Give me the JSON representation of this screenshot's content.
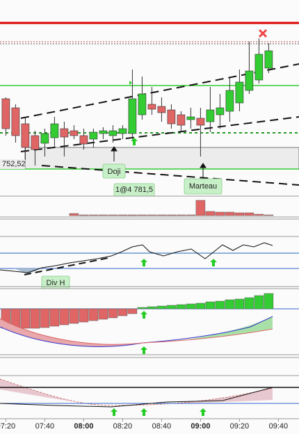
{
  "chart_data": [
    {
      "type": "candlestick",
      "x": [
        "07:20",
        "07:25",
        "07:30",
        "07:35",
        "07:40",
        "07:45",
        "07:50",
        "07:55",
        "08:00",
        "08:05",
        "08:10",
        "08:15",
        "08:20",
        "08:25",
        "08:30",
        "08:35",
        "08:40",
        "08:45",
        "08:50",
        "08:55",
        "09:00",
        "09:05",
        "09:10",
        "09:15",
        "09:20",
        "09:25",
        "09:30",
        "09:35"
      ],
      "open": [
        761.9,
        760.6,
        758.3,
        756.6,
        755.5,
        756.3,
        757.6,
        757.3,
        756.6,
        756.1,
        756.9,
        756.6,
        756.9,
        756.9,
        759.6,
        761.1,
        760.8,
        760.3,
        759.6,
        758.9,
        759.1,
        758.6,
        759.6,
        760.1,
        761.3,
        763.1,
        764.6,
        766.3
      ],
      "high": [
        762.1,
        761.1,
        759.1,
        757.3,
        757.6,
        759.3,
        758.6,
        758.1,
        757.6,
        757.6,
        757.8,
        758.1,
        758.1,
        766.1,
        765.1,
        763.6,
        762.1,
        761.1,
        760.1,
        760.6,
        760.6,
        763.6,
        762.6,
        765.1,
        766.1,
        770.1,
        770.6,
        769.9
      ],
      "low": [
        756.6,
        755.6,
        753.1,
        752.3,
        753.6,
        754.9,
        753.6,
        756.1,
        754.6,
        754.9,
        756.1,
        755.6,
        756.1,
        756.1,
        758.9,
        759.6,
        758.6,
        757.6,
        757.1,
        757.6,
        753.6,
        757.1,
        757.6,
        758.6,
        760.1,
        762.6,
        764.1,
        765.6
      ],
      "close": [
        757.6,
        756.6,
        754.9,
        754.6,
        756.9,
        758.3,
        756.4,
        756.6,
        755.4,
        757.1,
        757.3,
        757.3,
        757.6,
        761.9,
        762.6,
        760.4,
        759.9,
        758.3,
        758.1,
        759.3,
        758.1,
        760.3,
        760.6,
        763.1,
        764.3,
        765.9,
        768.3,
        768.8
      ],
      "up_color": "#33cc33",
      "down_color": "#e06666",
      "ylim": [
        751.6,
        772.6
      ],
      "xlim": [
        "07:17",
        "09:47"
      ],
      "xticks": [
        "07:20",
        "07:40",
        "08:00",
        "08:20",
        "08:40",
        "09:00",
        "09:20",
        "09:40"
      ],
      "annotations": [
        "752,52",
        "Doji",
        "1@4 781,5",
        "Marteau",
        "Div H"
      ]
    },
    {
      "type": "bar",
      "values": [
        0,
        0,
        0,
        0,
        0,
        0,
        0,
        3,
        1,
        1,
        1,
        1,
        1,
        1,
        1,
        1,
        1,
        1,
        1,
        1,
        22,
        6,
        5,
        5,
        4,
        4,
        2,
        1
      ],
      "color": "#e06666",
      "ylim": [
        0,
        25
      ]
    },
    {
      "type": "bar",
      "values": [
        -28,
        -28,
        -28,
        -28,
        -27,
        -25,
        -23,
        -21,
        -19,
        -17,
        -15,
        -13,
        -10,
        -7,
        2,
        3,
        4,
        5,
        6,
        7,
        8,
        10,
        11,
        13,
        14,
        16,
        19,
        22
      ],
      "up_color": "#33cc33",
      "down_color": "#e06666",
      "ylim": [
        -30,
        24
      ]
    }
  ]
}
